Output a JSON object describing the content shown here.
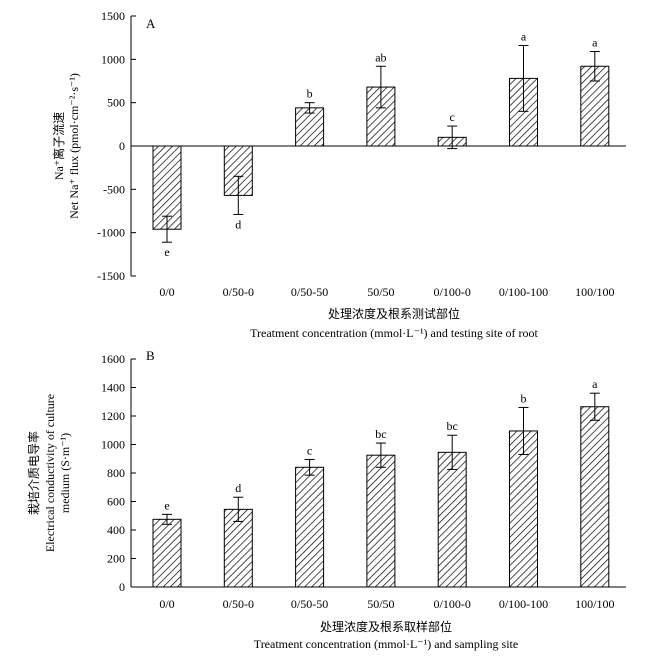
{
  "chart_data": [
    {
      "type": "bar",
      "panel_label": "A",
      "categories": [
        "0/0",
        "0/50-0",
        "0/50-50",
        "50/50",
        "0/100-0",
        "0/100-100",
        "100/100"
      ],
      "values": [
        -960,
        -570,
        440,
        680,
        100,
        780,
        920
      ],
      "errors": [
        150,
        220,
        60,
        240,
        130,
        380,
        170
      ],
      "significance": [
        "e",
        "d",
        "b",
        "ab",
        "c",
        "a",
        "a"
      ],
      "ylabel_cn": "Na⁺离子流速",
      "ylabel_en": "Net Na⁺ flux (pmol·cm⁻²·s⁻¹)",
      "xlabel_cn": "处理浓度及根系测试部位",
      "xlabel_en": "Treatment concentration (mmol·L⁻¹) and testing site of root",
      "ylim": [
        -1500,
        1500
      ],
      "yticks": [
        -1500,
        -1000,
        -500,
        0,
        500,
        1000,
        1500
      ],
      "grid": false,
      "bar_fill": "diagonal-hatch"
    },
    {
      "type": "bar",
      "panel_label": "B",
      "categories": [
        "0/0",
        "0/50-0",
        "0/50-50",
        "50/50",
        "0/100-0",
        "0/100-100",
        "100/100"
      ],
      "values": [
        475,
        545,
        840,
        925,
        945,
        1095,
        1265
      ],
      "errors": [
        35,
        85,
        55,
        85,
        120,
        165,
        95
      ],
      "significance": [
        "e",
        "d",
        "c",
        "bc",
        "bc",
        "b",
        "a"
      ],
      "ylabel_cn": "栽培介质电导率",
      "ylabel_en": "Electrical conductivity of culture",
      "ylabel_en2": "medium (S·m⁻¹)",
      "xlabel_cn": "处理浓度及根系取样部位",
      "xlabel_en": "Treatment concentration (mmol·L⁻¹) and sampling site",
      "ylim": [
        0,
        1600
      ],
      "yticks": [
        0,
        200,
        400,
        600,
        800,
        1000,
        1200,
        1400,
        1600
      ],
      "grid": false,
      "bar_fill": "diagonal-hatch"
    }
  ]
}
